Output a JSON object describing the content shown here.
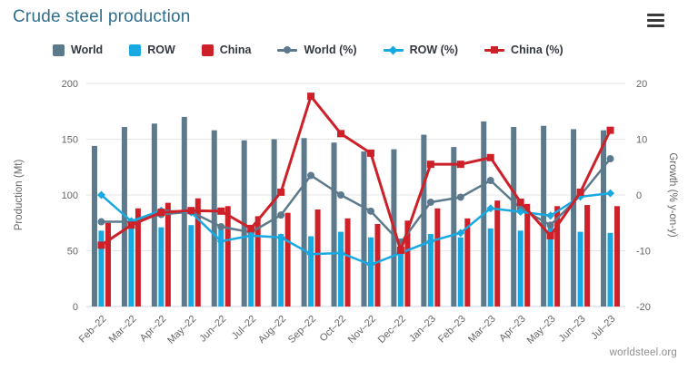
{
  "header": {
    "title": "Crude steel production"
  },
  "footer": {
    "credit": "worldsteel.org"
  },
  "colors": {
    "title": "#2f6e8f",
    "world": "#5c7a8c",
    "row": "#18a8e2",
    "china": "#ce2028",
    "grid": "#e6e6e6",
    "axis_line": "#ccd6e4",
    "tick_text": "#666666",
    "legend_text": "#333740",
    "footer_text": "#8f8f8f",
    "menu_icon": "#3a3a3a"
  },
  "chart_data": {
    "type": "bar+line",
    "title": "Crude steel production",
    "legend_position": "top",
    "grid": true,
    "categories": [
      "Feb–22",
      "Mar–22",
      "Apr–22",
      "May–22",
      "Jun–22",
      "Jul–22",
      "Aug–22",
      "Sep–22",
      "Oct–22",
      "Nov–22",
      "Dec–22",
      "Jan–23",
      "Feb–23",
      "Mar–23",
      "Apr–23",
      "May–23",
      "Jun–23",
      "Jul–23"
    ],
    "bar_series": [
      {
        "name": "World",
        "color": "#5c7a8c",
        "axis": "left",
        "values": [
          144,
          161,
          164,
          170,
          158,
          149,
          150,
          151,
          147,
          139,
          141,
          154,
          143,
          166,
          161,
          162,
          159,
          158
        ]
      },
      {
        "name": "ROW",
        "color": "#18a8e2",
        "axis": "left",
        "values": [
          68,
          72,
          71,
          73,
          69,
          66,
          65,
          63,
          67,
          62,
          61,
          65,
          62,
          70,
          68,
          71,
          67,
          66
        ]
      },
      {
        "name": "China",
        "color": "#ce2028",
        "axis": "left",
        "values": [
          75,
          88,
          93,
          97,
          90,
          81,
          84,
          87,
          79,
          74,
          77,
          88,
          79,
          95,
          92,
          90,
          91,
          90
        ]
      }
    ],
    "line_series": [
      {
        "name": "World (%)",
        "color": "#5c7a8c",
        "marker": "circle",
        "axis": "right",
        "values": [
          -4.8,
          -4.8,
          -3.5,
          -3.0,
          -5.7,
          -6.7,
          -3.6,
          3.5,
          0.0,
          -2.9,
          -8.6,
          -1.3,
          -0.4,
          2.6,
          -2.4,
          -5.4,
          -0.1,
          6.5
        ]
      },
      {
        "name": "ROW (%)",
        "color": "#18a8e2",
        "marker": "diamond",
        "axis": "right",
        "values": [
          0.0,
          -4.7,
          -2.8,
          -3.1,
          -8.3,
          -7.3,
          -7.6,
          -10.6,
          -10.4,
          -12.5,
          -10.4,
          -8.3,
          -6.8,
          -2.4,
          -3.0,
          -3.7,
          -0.3,
          0.3
        ]
      },
      {
        "name": "China (%)",
        "color": "#ce2028",
        "marker": "square",
        "axis": "right",
        "values": [
          -9.0,
          -5.4,
          -3.1,
          -2.8,
          -2.9,
          -6.0,
          0.5,
          17.7,
          11.0,
          7.5,
          -9.9,
          5.5,
          5.5,
          6.7,
          -1.3,
          -7.3,
          0.5,
          11.6
        ]
      }
    ],
    "left_axis": {
      "title": "Production (Mt)",
      "ticks": [
        0,
        50,
        100,
        150,
        200
      ],
      "range": [
        0,
        200
      ]
    },
    "right_axis": {
      "title": "Growth (% y-on-y)",
      "ticks": [
        20,
        10,
        0,
        -10,
        -20
      ],
      "range": [
        -20,
        20
      ]
    }
  }
}
